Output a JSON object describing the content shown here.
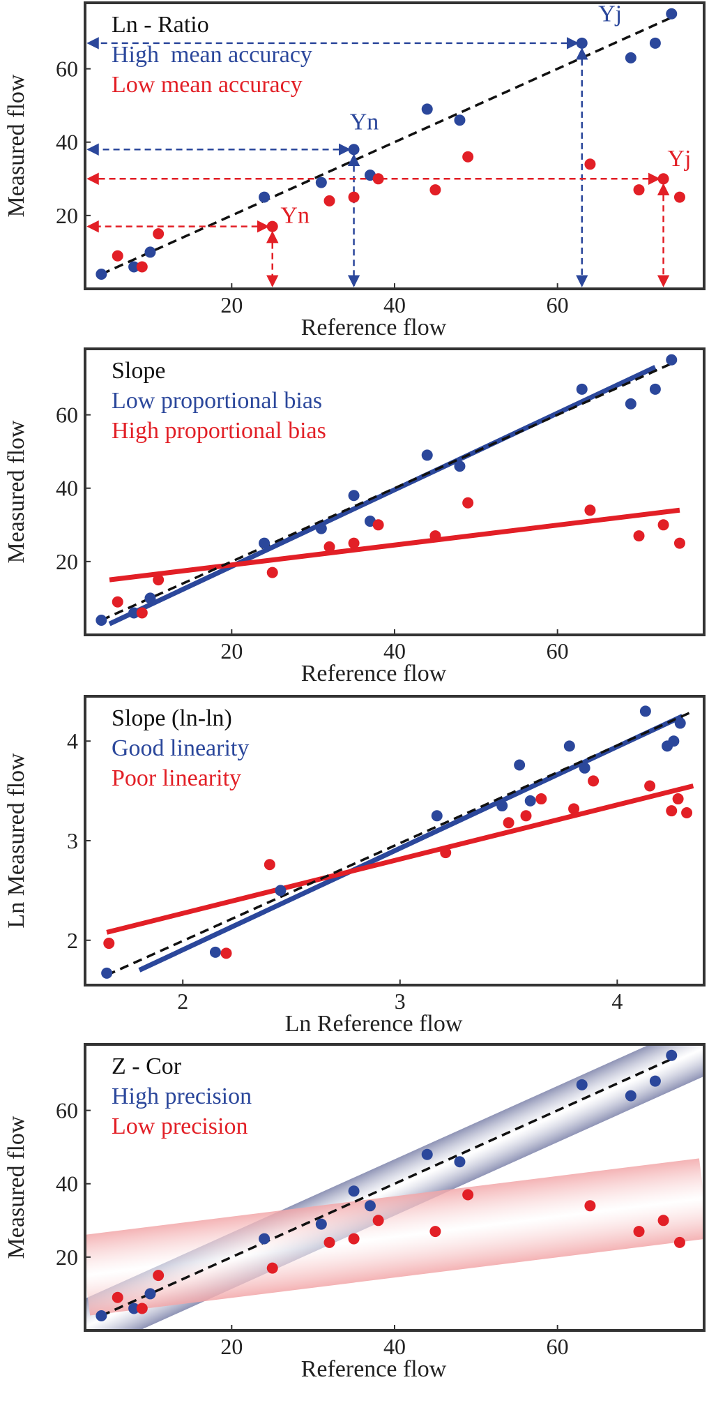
{
  "colors": {
    "blue": "#2b479b",
    "red": "#e21f26",
    "black": "#111111",
    "frame": "#333333",
    "band_blue": "#7a80a8",
    "band_red": "#f2a6a8"
  },
  "chart_data": [
    {
      "id": "p1",
      "type": "scatter",
      "xlabel": "Reference flow",
      "ylabel": "Measured flow",
      "xlim": [
        2,
        78
      ],
      "ylim": [
        0,
        78
      ],
      "xticks": [
        20,
        40,
        60
      ],
      "yticks": [
        20,
        40,
        60
      ],
      "legend": [
        {
          "text": "Ln - Ratio",
          "color": "#111111"
        },
        {
          "text": "High  mean accuracy",
          "color": "#2b479b"
        },
        {
          "text": "Low mean accuracy",
          "color": "#e21f26"
        }
      ],
      "identity": [
        [
          4,
          4
        ],
        [
          74,
          74
        ]
      ],
      "series": [
        {
          "color": "#2b479b",
          "x": [
            4,
            8,
            10,
            24,
            31,
            35,
            37,
            44,
            48,
            63,
            69,
            72,
            74
          ],
          "y": [
            4,
            6,
            10,
            25,
            29,
            38,
            31,
            49,
            46,
            67,
            63,
            67,
            75
          ]
        },
        {
          "color": "#e21f26",
          "x": [
            6,
            9,
            11,
            25,
            32,
            35,
            38,
            45,
            49,
            64,
            70,
            73,
            75
          ],
          "y": [
            9,
            6,
            15,
            17,
            24,
            25,
            30,
            27,
            36,
            34,
            27,
            30,
            25
          ]
        }
      ],
      "annotations": [
        {
          "text": "Yj",
          "color": "#2b479b",
          "x": 63,
          "y": 67,
          "label_dx": 2,
          "label_dy": 6
        },
        {
          "text": "Yn",
          "color": "#2b479b",
          "x": 35,
          "y": 38,
          "label_dx": -0.5,
          "label_dy": 5.5
        },
        {
          "text": "Yj",
          "color": "#e21f26",
          "x": 73,
          "y": 30,
          "label_dx": 0.5,
          "label_dy": 3.5
        },
        {
          "text": "Yn",
          "color": "#e21f26",
          "x": 25,
          "y": 17,
          "label_dx": 1,
          "label_dy": 1
        }
      ]
    },
    {
      "id": "p2",
      "type": "scatter",
      "xlabel": "Reference flow",
      "ylabel": "Measured flow",
      "xlim": [
        2,
        78
      ],
      "ylim": [
        0,
        78
      ],
      "xticks": [
        20,
        40,
        60
      ],
      "yticks": [
        20,
        40,
        60
      ],
      "legend": [
        {
          "text": "Slope",
          "color": "#111111"
        },
        {
          "text": "Low proportional bias",
          "color": "#2b479b"
        },
        {
          "text": "High proportional bias",
          "color": "#e21f26"
        }
      ],
      "identity": [
        [
          4,
          4
        ],
        [
          74,
          74
        ]
      ],
      "fits": [
        {
          "color": "#2b479b",
          "from": [
            5,
            3
          ],
          "to": [
            72,
            73
          ]
        },
        {
          "color": "#e21f26",
          "from": [
            5,
            15
          ],
          "to": [
            75,
            34
          ]
        }
      ],
      "series": [
        {
          "color": "#2b479b",
          "x": [
            4,
            8,
            10,
            24,
            31,
            35,
            37,
            44,
            48,
            63,
            69,
            72,
            74
          ],
          "y": [
            4,
            6,
            10,
            25,
            29,
            38,
            31,
            49,
            46,
            67,
            63,
            67,
            75
          ]
        },
        {
          "color": "#e21f26",
          "x": [
            6,
            9,
            11,
            25,
            32,
            35,
            38,
            45,
            49,
            64,
            70,
            73,
            75
          ],
          "y": [
            9,
            6,
            15,
            17,
            24,
            25,
            30,
            27,
            36,
            34,
            27,
            30,
            25
          ]
        }
      ]
    },
    {
      "id": "p3",
      "type": "scatter",
      "xlabel": "Ln Reference flow",
      "ylabel": "Ln Measured flow",
      "xlim": [
        1.55,
        4.4
      ],
      "ylim": [
        1.55,
        4.45
      ],
      "xticks": [
        2,
        3,
        4
      ],
      "yticks": [
        2,
        3,
        4
      ],
      "legend": [
        {
          "text": "Slope (ln-ln)",
          "color": "#111111"
        },
        {
          "text": "Good linearity",
          "color": "#2b479b"
        },
        {
          "text": "Poor linearity",
          "color": "#e21f26"
        }
      ],
      "identity": [
        [
          1.65,
          1.65
        ],
        [
          4.35,
          4.3
        ]
      ],
      "fits": [
        {
          "color": "#2b479b",
          "from": [
            1.8,
            1.7
          ],
          "to": [
            4.3,
            4.25
          ]
        },
        {
          "color": "#e21f26",
          "from": [
            1.65,
            2.08
          ],
          "to": [
            4.35,
            3.55
          ]
        }
      ],
      "series": [
        {
          "color": "#2b479b",
          "x": [
            1.65,
            2.15,
            2.45,
            3.17,
            3.47,
            3.55,
            3.6,
            3.78,
            3.85,
            4.13,
            4.23,
            4.26,
            4.29
          ],
          "y": [
            1.67,
            1.88,
            2.5,
            3.25,
            3.35,
            3.76,
            3.4,
            3.95,
            3.73,
            4.3,
            3.95,
            4.0,
            4.18
          ]
        },
        {
          "color": "#e21f26",
          "x": [
            1.66,
            2.2,
            2.4,
            3.21,
            3.5,
            3.58,
            3.65,
            3.8,
            3.89,
            4.15,
            4.25,
            4.28,
            4.32
          ],
          "y": [
            1.97,
            1.87,
            2.76,
            2.88,
            3.18,
            3.25,
            3.42,
            3.32,
            3.6,
            3.55,
            3.3,
            3.42,
            3.28
          ]
        }
      ]
    },
    {
      "id": "p4",
      "type": "scatter",
      "xlabel": "Reference flow",
      "ylabel": "Measured flow",
      "xlim": [
        2,
        78
      ],
      "ylim": [
        0,
        78
      ],
      "xticks": [
        20,
        40,
        60
      ],
      "yticks": [
        20,
        40,
        60
      ],
      "legend": [
        {
          "text": "Z - Cor",
          "color": "#111111"
        },
        {
          "text": "High precision",
          "color": "#2b479b"
        },
        {
          "text": "Low precision",
          "color": "#e21f26"
        }
      ],
      "identity": [
        [
          4,
          4
        ],
        [
          74,
          74
        ]
      ],
      "bands": [
        {
          "color": "#7a80a8",
          "center": [
            [
              2,
              1
            ],
            [
              78,
              77
            ]
          ],
          "half_width": 7
        },
        {
          "color": "#f2a6a8",
          "center": [
            [
              2,
              15
            ],
            [
              78,
              36
            ]
          ],
          "half_width": 11
        }
      ],
      "series": [
        {
          "color": "#2b479b",
          "x": [
            4,
            8,
            10,
            24,
            31,
            35,
            37,
            44,
            48,
            63,
            69,
            72,
            74
          ],
          "y": [
            4,
            6,
            10,
            25,
            29,
            38,
            34,
            48,
            46,
            67,
            64,
            68,
            75
          ]
        },
        {
          "color": "#e21f26",
          "x": [
            6,
            9,
            11,
            25,
            32,
            35,
            38,
            45,
            49,
            64,
            70,
            73,
            75
          ],
          "y": [
            9,
            6,
            15,
            17,
            24,
            25,
            30,
            27,
            37,
            34,
            27,
            30,
            24
          ]
        }
      ]
    }
  ]
}
